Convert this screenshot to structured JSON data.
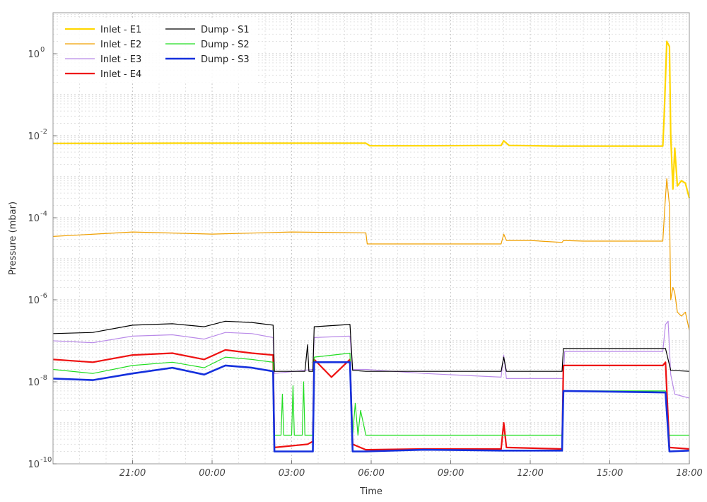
{
  "chart_data": {
    "type": "line",
    "title": "",
    "xlabel": "Time",
    "ylabel": "Pressure (mbar)",
    "y_scale": "log",
    "ylim": [
      1e-10,
      10
    ],
    "xlim_hours": [
      18.0,
      42.0
    ],
    "grid": true,
    "legend_position": "top-left",
    "x_ticks": [
      {
        "value": 21,
        "label": "21:00"
      },
      {
        "value": 24,
        "label": "00:00"
      },
      {
        "value": 27,
        "label": "03:00"
      },
      {
        "value": 30,
        "label": "06:00"
      },
      {
        "value": 33,
        "label": "09:00"
      },
      {
        "value": 36,
        "label": "12:00"
      },
      {
        "value": 39,
        "label": "15:00"
      },
      {
        "value": 42,
        "label": "18:00"
      }
    ],
    "y_ticks": [
      {
        "value": 1e-10,
        "base": "10",
        "exp": "-10"
      },
      {
        "value": 1e-08,
        "base": "10",
        "exp": "-8"
      },
      {
        "value": 1e-06,
        "base": "10",
        "exp": "-6"
      },
      {
        "value": 0.0001,
        "base": "10",
        "exp": "-4"
      },
      {
        "value": 0.01,
        "base": "10",
        "exp": "-2"
      },
      {
        "value": 1,
        "base": "10",
        "exp": "0"
      }
    ],
    "series": [
      {
        "name": "Inlet - E1",
        "color": "#ffd700",
        "width": 2.2,
        "x": [
          18.0,
          23.0,
          28.0,
          29.8,
          29.95,
          32.0,
          34.9,
          35.0,
          35.2,
          37.0,
          40.0,
          41.0,
          41.05,
          41.15,
          41.25,
          41.3,
          41.38,
          41.45,
          41.55,
          41.7,
          41.85,
          42.0
        ],
        "y": [
          0.0065,
          0.0066,
          0.0066,
          0.0066,
          0.0057,
          0.0057,
          0.0058,
          0.0075,
          0.0058,
          0.0056,
          0.0056,
          0.0056,
          0.03,
          2.0,
          1.5,
          0.01,
          0.0005,
          0.005,
          0.0006,
          0.0008,
          0.0007,
          0.0003
        ]
      },
      {
        "name": "Inlet - E2",
        "color": "#f0a000",
        "width": 1.2,
        "x": [
          18.0,
          21.0,
          24.0,
          27.0,
          29.8,
          29.85,
          32.0,
          34.9,
          35.0,
          35.1,
          36.0,
          37.2,
          37.25,
          38.0,
          41.0,
          41.08,
          41.15,
          41.25,
          41.3,
          41.38,
          41.45,
          41.55,
          41.7,
          41.85,
          42.0
        ],
        "y": [
          3.5e-05,
          4.5e-05,
          4e-05,
          4.5e-05,
          4.3e-05,
          2.3e-05,
          2.3e-05,
          2.3e-05,
          4e-05,
          2.8e-05,
          2.8e-05,
          2.5e-05,
          2.8e-05,
          2.7e-05,
          2.7e-05,
          0.0002,
          0.0009,
          0.0002,
          1e-06,
          2e-06,
          1.5e-06,
          5e-07,
          4e-07,
          5e-07,
          1.8e-07
        ]
      },
      {
        "name": "Inlet - E3",
        "color": "#b98ae8",
        "width": 1.2,
        "x": [
          18.0,
          19.5,
          21.0,
          22.5,
          23.7,
          24.5,
          25.5,
          26.3,
          26.35,
          27.8,
          27.85,
          29.2,
          29.3,
          29.8,
          32.0,
          34.9,
          35.0,
          35.1,
          37.25,
          37.3,
          41.0,
          41.1,
          41.2,
          41.3,
          41.45,
          42.0
        ],
        "y": [
          1e-07,
          9e-08,
          1.3e-07,
          1.4e-07,
          1.1e-07,
          1.6e-07,
          1.5e-07,
          1.2e-07,
          1.6e-08,
          2e-08,
          1.2e-07,
          1.3e-07,
          2e-08,
          2e-08,
          1.6e-08,
          1.3e-08,
          4.5e-08,
          1.2e-08,
          1.2e-08,
          5.5e-08,
          5.5e-08,
          2.5e-07,
          3e-07,
          1.5e-08,
          5e-09,
          4e-09
        ]
      },
      {
        "name": "Inlet - E4",
        "color": "#ee1111",
        "width": 2.2,
        "x": [
          18.0,
          19.5,
          21.0,
          22.5,
          23.7,
          24.5,
          25.5,
          26.3,
          26.35,
          27.6,
          27.8,
          27.85,
          28.5,
          29.2,
          29.3,
          29.8,
          32.0,
          34.9,
          35.0,
          35.1,
          37.2,
          37.25,
          41.0,
          41.1,
          41.25,
          42.0
        ],
        "y": [
          3.5e-08,
          3e-08,
          4.5e-08,
          5e-08,
          3.5e-08,
          6e-08,
          5e-08,
          4.5e-08,
          2.5e-10,
          3e-10,
          3.5e-10,
          3.5e-08,
          1.3e-08,
          3.5e-08,
          3e-10,
          2.2e-10,
          2.3e-10,
          2.3e-10,
          1e-09,
          2.5e-10,
          2.3e-10,
          2.5e-08,
          2.5e-08,
          3e-08,
          2.5e-10,
          2.3e-10
        ]
      },
      {
        "name": "Dump - S1",
        "color": "#000000",
        "width": 1.2,
        "x": [
          18.0,
          19.5,
          21.0,
          22.5,
          23.7,
          24.5,
          25.5,
          26.3,
          26.35,
          27.0,
          27.5,
          27.6,
          27.65,
          27.8,
          27.85,
          29.2,
          29.3,
          29.8,
          32.0,
          34.9,
          35.0,
          35.1,
          37.2,
          37.25,
          41.0,
          41.1,
          41.3,
          42.0
        ],
        "y": [
          1.5e-07,
          1.6e-07,
          2.4e-07,
          2.6e-07,
          2.2e-07,
          3e-07,
          2.8e-07,
          2.4e-07,
          1.8e-08,
          1.8e-08,
          1.8e-08,
          8e-08,
          1.8e-08,
          1.8e-08,
          2.2e-07,
          2.5e-07,
          1.9e-08,
          1.8e-08,
          1.8e-08,
          1.8e-08,
          4e-08,
          1.8e-08,
          1.8e-08,
          6.5e-08,
          6.5e-08,
          6.5e-08,
          1.9e-08,
          1.8e-08
        ]
      },
      {
        "name": "Dump - S2",
        "color": "#22dd22",
        "width": 1.2,
        "x": [
          18.0,
          19.5,
          21.0,
          22.5,
          23.7,
          24.5,
          25.5,
          26.3,
          26.35,
          26.6,
          26.65,
          26.7,
          27.0,
          27.05,
          27.1,
          27.4,
          27.45,
          27.5,
          27.8,
          27.85,
          29.2,
          29.3,
          29.4,
          29.5,
          29.6,
          29.8,
          32.0,
          37.2,
          37.25,
          41.0,
          41.1,
          41.2,
          42.0
        ],
        "y": [
          2e-08,
          1.6e-08,
          2.5e-08,
          3e-08,
          2.2e-08,
          4e-08,
          3.5e-08,
          3e-08,
          5e-10,
          5e-10,
          5e-09,
          5e-10,
          5e-10,
          8e-09,
          5e-10,
          5e-10,
          1e-08,
          5e-10,
          5e-10,
          4e-08,
          5e-08,
          5e-10,
          3e-09,
          5e-10,
          2e-09,
          5e-10,
          5e-10,
          5e-10,
          6e-09,
          6e-09,
          6e-09,
          5e-10,
          5e-10
        ]
      },
      {
        "name": "Dump - S3",
        "color": "#1530dd",
        "width": 2.6,
        "x": [
          18.0,
          19.5,
          21.0,
          22.5,
          23.7,
          24.5,
          25.5,
          26.3,
          26.35,
          27.8,
          27.85,
          29.2,
          29.3,
          29.8,
          32.0,
          34.9,
          37.2,
          37.25,
          41.0,
          41.1,
          41.25,
          42.0
        ],
        "y": [
          1.2e-08,
          1.1e-08,
          1.6e-08,
          2.2e-08,
          1.5e-08,
          2.5e-08,
          2.2e-08,
          1.8e-08,
          2e-10,
          2e-10,
          3e-08,
          3e-08,
          2e-10,
          2e-10,
          2.2e-10,
          2.1e-10,
          2.1e-10,
          6e-09,
          5.5e-09,
          5.5e-09,
          2e-10,
          2.1e-10
        ]
      }
    ]
  }
}
